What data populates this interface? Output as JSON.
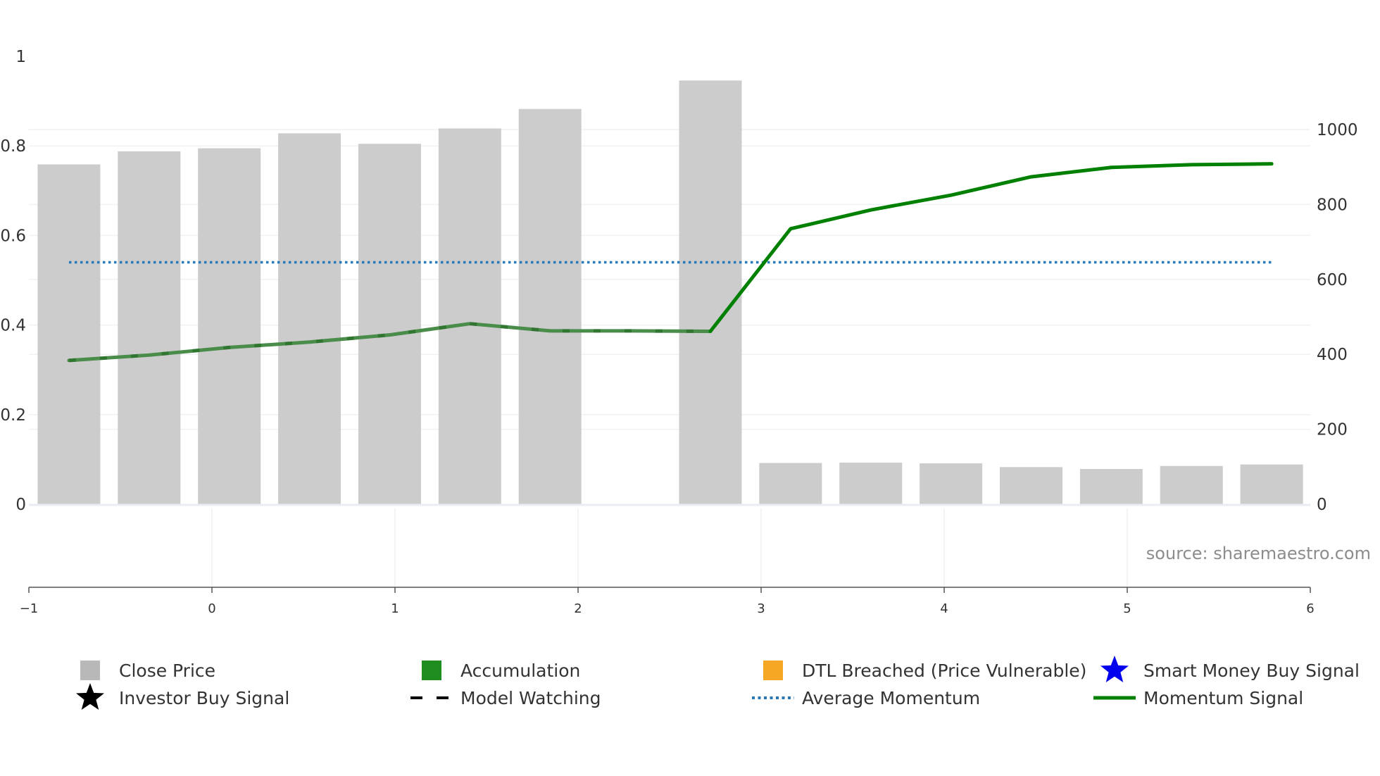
{
  "chart_data": {
    "type": "bar",
    "title": "",
    "source_note": "source: sharemaestro.com",
    "x_axis": {
      "min": -1,
      "max": 6,
      "ticks": [
        -1,
        0,
        1,
        2,
        3,
        4,
        5,
        6
      ],
      "tick_labels": [
        "−1",
        "0",
        "1",
        "2",
        "3",
        "4",
        "5",
        "6"
      ]
    },
    "y_left": {
      "min": 0,
      "max": 1,
      "ticks": [
        0,
        0.2,
        0.4,
        0.6,
        0.8,
        1
      ],
      "tick_labels": [
        "0",
        "0.2",
        "0.4",
        "0.6",
        "0.8",
        "1"
      ]
    },
    "y_right": {
      "min": 0,
      "max": 1190,
      "ticks": [
        0,
        200,
        400,
        600,
        800,
        1000
      ],
      "tick_labels": [
        "0",
        "200",
        "400",
        "600",
        "800",
        "1000"
      ]
    },
    "close_price": {
      "name": "Close Price",
      "axis": "right",
      "color": "#cccccc",
      "x": [
        -0.781,
        -0.343,
        0.095,
        0.533,
        0.971,
        1.409,
        1.847,
        2.285,
        2.723,
        3.161,
        3.599,
        4.037,
        4.475,
        4.913,
        5.351,
        5.789
      ],
      "values": [
        907,
        942,
        950,
        990,
        962,
        1003,
        1055,
        null,
        1131,
        110,
        111,
        109,
        99,
        94,
        102,
        106
      ]
    },
    "momentum_signal": {
      "name": "Momentum Signal",
      "axis": "left",
      "color": "#008000",
      "faded_color": "#4a8c4a",
      "x": [
        -0.781,
        -0.343,
        0.095,
        0.533,
        0.971,
        1.409,
        1.847,
        2.285,
        2.723,
        3.161,
        3.599,
        4.037,
        4.475,
        4.913,
        5.351,
        5.789
      ],
      "values": [
        0.321,
        0.333,
        0.35,
        0.362,
        0.378,
        0.403,
        0.387,
        0.387,
        0.386,
        0.615,
        0.657,
        0.69,
        0.731,
        0.752,
        0.758,
        0.76
      ],
      "faded_until_x": 2.723
    },
    "average_momentum": {
      "name": "Average Momentum",
      "axis": "left",
      "color": "#2878b5",
      "value": 0.54,
      "x_range": [
        -0.781,
        5.789
      ]
    },
    "legend": {
      "placement": "bottom",
      "items": [
        {
          "label": "Close Price",
          "symbol": "square",
          "color": "#b8b8b8"
        },
        {
          "label": "Accumulation",
          "symbol": "square",
          "color": "#1e8c1e"
        },
        {
          "label": "DTL Breached (Price Vulnerable)",
          "symbol": "square",
          "color": "#f5a623"
        },
        {
          "label": "Smart Money Buy Signal",
          "symbol": "star",
          "color": "#0000ee"
        },
        {
          "label": "Investor Buy Signal",
          "symbol": "star",
          "color": "#000000"
        },
        {
          "label": "Model Watching",
          "symbol": "dash",
          "color": "#000000"
        },
        {
          "label": "Average Momentum",
          "symbol": "dot",
          "color": "#2878b5"
        },
        {
          "label": "Momentum Signal",
          "symbol": "line",
          "color": "#008000"
        }
      ]
    }
  }
}
